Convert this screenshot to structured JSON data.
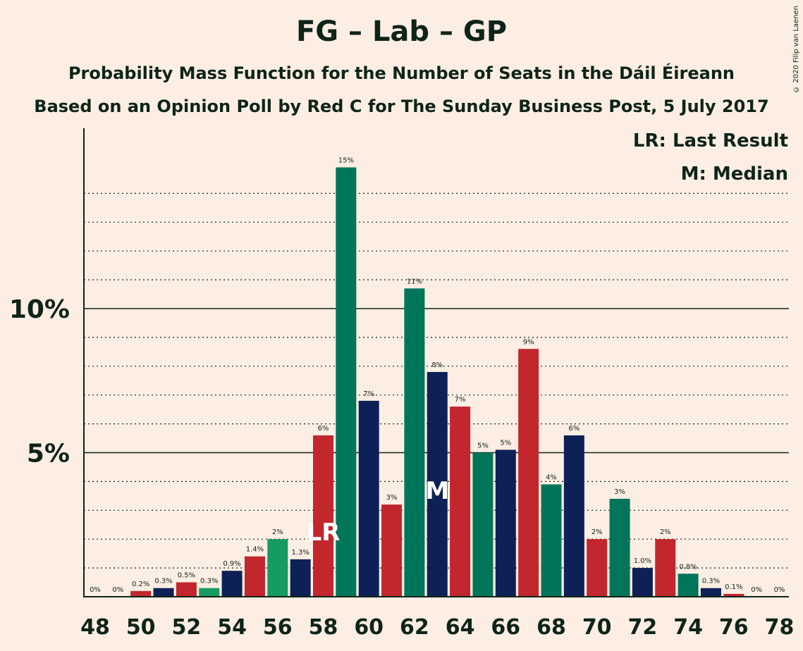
{
  "chart_data": {
    "type": "bar",
    "title": "FG – Lab – GP",
    "subtitle": "Probability Mass Function for the Number of Seats in the Dáil Éireann",
    "subtitle2": "Based on an Opinion Poll by Red C for The Sunday Business Post, 5 July 2017",
    "legend": [
      "LR: Last Result",
      "M: Median"
    ],
    "legend_position": "top-right",
    "copyright": "© 2020 Filip van Laenen",
    "x": [
      48,
      49,
      50,
      51,
      52,
      53,
      54,
      55,
      56,
      57,
      58,
      59,
      60,
      61,
      62,
      63,
      64,
      65,
      66,
      67,
      68,
      69,
      70,
      71,
      72,
      73,
      74,
      75,
      76,
      77,
      78
    ],
    "values": [
      0,
      0,
      0.2,
      0.3,
      0.5,
      0.3,
      0.9,
      1.4,
      2.0,
      1.3,
      5.6,
      14.9,
      6.8,
      3.2,
      10.7,
      7.8,
      6.6,
      5.0,
      5.1,
      8.6,
      3.9,
      5.6,
      2.0,
      3.4,
      1.0,
      2.0,
      0.8,
      0.3,
      0.1,
      0,
      0
    ],
    "value_labels": [
      "0%",
      "0%",
      "0.2%",
      "0.3%",
      "0.5%",
      "0.3%",
      "0.9%",
      "1.4%",
      "2%",
      "1.3%",
      "6%",
      "15%",
      "7%",
      "3%",
      "11%",
      "8%",
      "7%",
      "5%",
      "5%",
      "9%",
      "4%",
      "6%",
      "2%",
      "3%",
      "1.0%",
      "2%",
      "0.8%",
      "0.3%",
      "0.1%",
      "0%",
      "0%"
    ],
    "colors": [
      "#169B62",
      "#0E2156",
      "#C1272D",
      "#0E2156",
      "#C1272D",
      "#169B62",
      "#0E2156",
      "#C1272D",
      "#169B62",
      "#0E2156",
      "#C1272D",
      "#00755A",
      "#0E2156",
      "#C1272D",
      "#00755A",
      "#0E2156",
      "#C1272D",
      "#00755A",
      "#0E2156",
      "#C1272D",
      "#00755A",
      "#0E2156",
      "#C1272D",
      "#00755A",
      "#0E2156",
      "#C1272D",
      "#00755A",
      "#0E2156",
      "#C1272D",
      "#00755A",
      "#0E2156"
    ],
    "x_ticks": [
      "48",
      "50",
      "52",
      "54",
      "56",
      "58",
      "60",
      "62",
      "64",
      "66",
      "68",
      "70",
      "72",
      "74",
      "76",
      "78"
    ],
    "y_ticks": [
      {
        "value": 5,
        "label": "5%"
      },
      {
        "value": 10,
        "label": "10%"
      }
    ],
    "ylim": [
      0,
      16.3
    ],
    "last_result_seat": 58,
    "last_result_marker": "LR",
    "median_seat": 63,
    "median_marker": "M",
    "grid": "dotted every 1%, solid at 5% and 10%"
  }
}
